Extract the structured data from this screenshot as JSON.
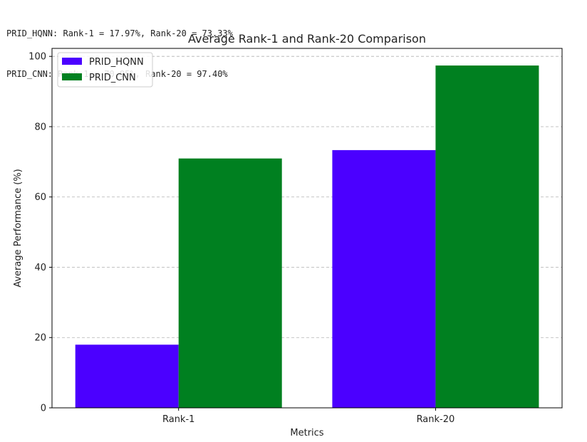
{
  "console": {
    "lines": [
      "PRID_HQNN: Rank-1 = 17.97%, Rank-20 = 73.33%",
      "PRID_CNN: Rank-1 = 70.95%, Rank-20 = 97.40%"
    ]
  },
  "chart_data": {
    "type": "bar",
    "title": "Average Rank-1 and Rank-20 Comparison",
    "xlabel": "Metrics",
    "ylabel": "Average Performance (%)",
    "categories": [
      "Rank-1",
      "Rank-20"
    ],
    "series": [
      {
        "name": "PRID_HQNN",
        "values": [
          17.97,
          73.33
        ],
        "color": "#4b00ff"
      },
      {
        "name": "PRID_CNN",
        "values": [
          70.95,
          97.4
        ],
        "color": "#008020"
      }
    ],
    "ylim": [
      0,
      102.27
    ],
    "yticks": [
      0,
      20,
      40,
      60,
      80,
      100
    ],
    "grid": "y-dashed",
    "legend": "top-left"
  }
}
